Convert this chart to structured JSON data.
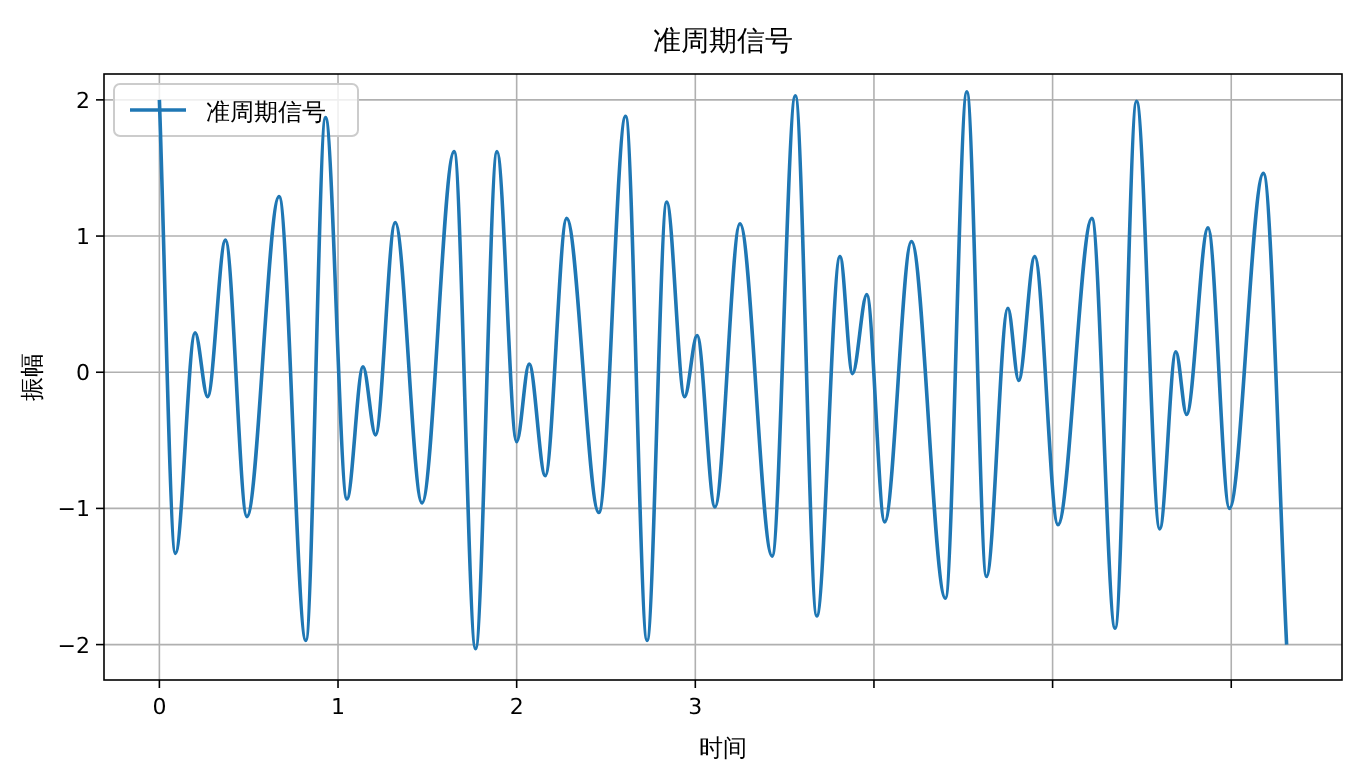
{
  "chart_data": {
    "type": "line",
    "title": "准周期信号",
    "xlabel": "时间",
    "ylabel": "振幅",
    "xlim": [
      -0.31,
      6.62
    ],
    "ylim": [
      -2.26,
      2.19
    ],
    "xticks": [
      0,
      1,
      2,
      3,
      {
        "value": 4,
        "label": null
      },
      {
        "value": 5,
        "label": null
      },
      {
        "value": 6,
        "label": null
      }
    ],
    "yticks": [
      {
        "value": -2,
        "label": "−2"
      },
      {
        "value": -1,
        "label": "−1"
      },
      0,
      1,
      2
    ],
    "grid": true,
    "legend": "top left",
    "line_style": "solid",
    "series": [
      {
        "name": "准周期信号",
        "color": "#1f77b4",
        "x": [
          0,
          0.09,
          0.2,
          0.27,
          0.37,
          0.49,
          0.67,
          0.82,
          0.93,
          1.05,
          1.14,
          1.21,
          1.32,
          1.47,
          1.65,
          1.77,
          1.89,
          2.0,
          2.07,
          2.16,
          2.28,
          2.46,
          2.61,
          2.73,
          2.84,
          2.94,
          3.01,
          3.11,
          3.25,
          3.43,
          3.56,
          3.68,
          3.81,
          3.88,
          3.96,
          4.06,
          4.21,
          4.4,
          4.52,
          4.63,
          4.75,
          4.81,
          4.9,
          5.03,
          5.22,
          5.35,
          5.47,
          5.6,
          5.69,
          5.75,
          5.87,
          5.99,
          6.18,
          6.31
        ],
        "values": [
          2.0,
          -1.33,
          0.29,
          -0.18,
          0.97,
          -1.06,
          1.29,
          -1.97,
          1.87,
          -0.93,
          0.04,
          -0.46,
          1.1,
          -0.96,
          1.62,
          -2.03,
          1.62,
          -0.51,
          0.06,
          -0.76,
          1.13,
          -1.03,
          1.88,
          -1.97,
          1.25,
          -0.18,
          0.27,
          -0.99,
          1.09,
          -1.35,
          2.03,
          -1.79,
          0.85,
          -0.01,
          0.57,
          -1.1,
          0.96,
          -1.66,
          2.06,
          -1.5,
          0.47,
          -0.06,
          0.85,
          -1.12,
          1.13,
          -1.88,
          1.99,
          -1.15,
          0.15,
          -0.31,
          1.06,
          -1.0,
          1.46,
          -2.0
        ]
      }
    ]
  }
}
